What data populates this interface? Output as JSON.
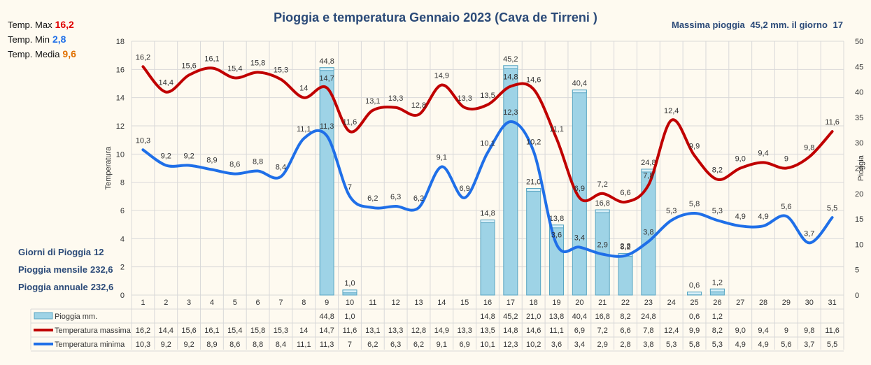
{
  "header": {
    "title": "Pioggia e temperatura Gennaio 2023 (Cava de Tirreni )",
    "max_rain_label": "Massima pioggia",
    "max_rain_value": "45,2 mm. il giorno",
    "max_rain_day": "17"
  },
  "stats": {
    "max_label": "Temp. Max",
    "max_value": "16,2",
    "min_label": "Temp. Min",
    "min_value": "2,8",
    "avg_label": "Temp. Media",
    "avg_value": "9,6"
  },
  "summary": {
    "rain_days_label": "Giorni di Pioggia",
    "rain_days_value": "12",
    "monthly_label": "Pioggia mensile",
    "monthly_value": "232,6",
    "annual_label": "Pioggia annuale",
    "annual_value": "232,6"
  },
  "colors": {
    "max_line": "#c00000",
    "min_line": "#1f6fe8",
    "bars": "#9ed3e6",
    "max_value_text": "#e00000",
    "min_value_text": "#1f6fe8",
    "avg_value_text": "#e07000"
  },
  "chart_data": {
    "type": "bar",
    "categories": [
      "1",
      "2",
      "3",
      "4",
      "5",
      "6",
      "7",
      "8",
      "9",
      "10",
      "11",
      "12",
      "13",
      "14",
      "15",
      "16",
      "17",
      "18",
      "19",
      "20",
      "21",
      "22",
      "23",
      "24",
      "25",
      "26",
      "27",
      "28",
      "29",
      "30",
      "31"
    ],
    "series": [
      {
        "name": "Pioggia mm.",
        "kind": "bar",
        "axis": "right",
        "values": [
          null,
          null,
          null,
          null,
          null,
          null,
          null,
          null,
          44.8,
          1.0,
          null,
          null,
          null,
          null,
          null,
          14.8,
          45.2,
          21.0,
          13.8,
          40.4,
          16.8,
          8.2,
          24.8,
          null,
          0.6,
          1.2,
          null,
          null,
          null,
          null,
          null
        ],
        "labels": [
          "",
          "",
          "",
          "",
          "",
          "",
          "",
          "",
          "44,8",
          "1,0",
          "",
          "",
          "",
          "",
          "",
          "14,8",
          "45,2",
          "21,0",
          "13,8",
          "40,4",
          "16,8",
          "8,2",
          "24,8",
          "",
          "0,6",
          "1,2",
          "",
          "",
          "",
          "",
          ""
        ]
      },
      {
        "name": "Temperatura massima",
        "kind": "line",
        "axis": "left",
        "values": [
          16.2,
          14.4,
          15.6,
          16.1,
          15.4,
          15.8,
          15.3,
          14,
          14.7,
          11.6,
          13.1,
          13.3,
          12.8,
          14.9,
          13.3,
          13.5,
          14.8,
          14.6,
          11.1,
          6.9,
          7.2,
          6.6,
          7.8,
          12.4,
          9.9,
          8.2,
          9.0,
          9.4,
          9,
          9.8,
          11.6
        ],
        "labels": [
          "16,2",
          "14,4",
          "15,6",
          "16,1",
          "15,4",
          "15,8",
          "15,3",
          "14",
          "14,7",
          "11,6",
          "13,1",
          "13,3",
          "12,8",
          "14,9",
          "13,3",
          "13,5",
          "14,8",
          "14,6",
          "11,1",
          "6,9",
          "7,2",
          "6,6",
          "7,8",
          "12,4",
          "9,9",
          "8,2",
          "9,0",
          "9,4",
          "9",
          "9,8",
          "11,6"
        ]
      },
      {
        "name": "Temperatura minima",
        "kind": "line",
        "axis": "left",
        "values": [
          10.3,
          9.2,
          9.2,
          8.9,
          8.6,
          8.8,
          8.4,
          11.1,
          11.3,
          7,
          6.2,
          6.3,
          6.2,
          9.1,
          6.9,
          10.1,
          12.3,
          10.2,
          3.6,
          3.4,
          2.9,
          2.8,
          3.8,
          5.3,
          5.8,
          5.3,
          4.9,
          4.9,
          5.6,
          3.7,
          5.5
        ],
        "labels": [
          "10,3",
          "9,2",
          "9,2",
          "8,9",
          "8,6",
          "8,8",
          "8,4",
          "11,1",
          "11,3",
          "7",
          "6,2",
          "6,3",
          "6,2",
          "9,1",
          "6,9",
          "10,1",
          "12,3",
          "10,2",
          "3,6",
          "3,4",
          "2,9",
          "2,8",
          "3,8",
          "5,3",
          "5,8",
          "5,3",
          "4,9",
          "4,9",
          "5,6",
          "3,7",
          "5,5"
        ]
      }
    ],
    "ylabel": "Temperatura",
    "y2label": "Pioggia",
    "ylim": [
      0,
      18
    ],
    "y2lim": [
      0,
      50
    ],
    "yticks": [
      "0",
      "2",
      "4",
      "6",
      "8",
      "10",
      "12",
      "14",
      "16",
      "18"
    ],
    "y2ticks": [
      "0",
      "5",
      "10",
      "15",
      "20",
      "25",
      "30",
      "35",
      "40",
      "45",
      "50"
    ],
    "grid": true,
    "legend": "data-table below chart"
  }
}
